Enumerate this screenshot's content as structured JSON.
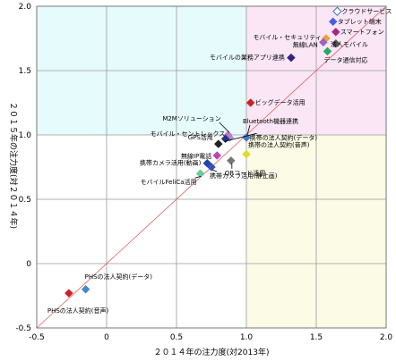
{
  "chart_data": {
    "type": "scatter",
    "title": "",
    "xlabel": "２０１４年の注力度(対2013年)",
    "ylabel": "２０１５年の注力度(対２０１４年)",
    "xlim": [
      -0.5,
      2.0
    ],
    "ylim": [
      -0.5,
      2.0
    ],
    "x_ticks": [
      "-0.5",
      "0",
      "0.5",
      "1.0",
      "1.5",
      "2.0"
    ],
    "y_ticks": [
      "-0.5",
      "0",
      "0.5",
      "1.0",
      "1.5",
      "2.0"
    ],
    "grid": true,
    "diagonal_line": true,
    "quadrants": [
      {
        "name": "upper-left",
        "color": "#e6fbfb"
      },
      {
        "name": "upper-right",
        "color": "#fbe6f6"
      },
      {
        "name": "lower-right",
        "color": "#fbfbe6"
      },
      {
        "name": "lower-left",
        "color": "#ffffff"
      }
    ],
    "points": [
      {
        "label": "クラウドサービス",
        "x": 1.65,
        "y": 1.96,
        "color": "#ffffff",
        "stroke": "#4472c4",
        "shape": "diamond"
      },
      {
        "label": "タブレット端末",
        "x": 1.62,
        "y": 1.88,
        "color": "#4466dd",
        "shape": "diamond"
      },
      {
        "label": "スマートフォン",
        "x": 1.64,
        "y": 1.8,
        "color": "#aa2288",
        "shape": "diamond"
      },
      {
        "label": "モバイル・セキュリティ",
        "x": 1.57,
        "y": 1.75,
        "color": "#e8a33a",
        "shape": "diamond"
      },
      {
        "label": "無線LAN",
        "x": 1.55,
        "y": 1.72,
        "color": "#9966bb",
        "shape": "diamond"
      },
      {
        "label": "法人モバイル",
        "x": 1.64,
        "y": 1.71,
        "color": "#555555",
        "shape": "diamond"
      },
      {
        "label": "データ通信対応",
        "x": 1.58,
        "y": 1.65,
        "color": "#22aa66",
        "shape": "diamond"
      },
      {
        "label": "モバイルの業務アプリ連携",
        "x": 1.32,
        "y": 1.6,
        "color": "#332288",
        "shape": "diamond"
      },
      {
        "label": "ビッグデータ活用",
        "x": 1.03,
        "y": 1.25,
        "color": "#cc2222",
        "shape": "diamond"
      },
      {
        "label": "M2Mソリューション",
        "x": 0.87,
        "y": 1.0,
        "color": "#cc66cc",
        "shape": "diamond"
      },
      {
        "label": "Bluetooth機器連携",
        "x": 1.0,
        "y": 0.98,
        "color": "#4477cc",
        "shape": "diamond"
      },
      {
        "label": "モバイル・セントレックス",
        "x": 0.88,
        "y": 0.98,
        "color": "#aa88cc",
        "shape": "diamond"
      },
      {
        "label": "携帯の法人契約(データ)",
        "x": 0.85,
        "y": 0.97,
        "color": "#223388",
        "shape": "diamond"
      },
      {
        "label": "GPS活用",
        "x": 0.8,
        "y": 0.93,
        "color": "#222222",
        "shape": "diamond"
      },
      {
        "label": "携帯の法人契約(音声)",
        "x": 1.0,
        "y": 0.85,
        "color": "#dddd22",
        "shape": "diamond"
      },
      {
        "label": "無線IP電話",
        "x": 0.79,
        "y": 0.84,
        "color": "#bb44bb",
        "shape": "diamond"
      },
      {
        "label": "携帯カメラ活用(動画)",
        "x": 0.72,
        "y": 0.78,
        "color": "#2244aa",
        "shape": "diamond"
      },
      {
        "label": "QRコード活用",
        "x": 0.89,
        "y": 0.8,
        "color": "#777777",
        "shape": "diamond"
      },
      {
        "label": "携帯カメラ活用(静止画)",
        "x": 0.75,
        "y": 0.75,
        "color": "#3355bb",
        "shape": "diamond"
      },
      {
        "label": "モバイルFeliCa活用",
        "x": 0.67,
        "y": 0.7,
        "color": "#66cc99",
        "shape": "diamond"
      },
      {
        "label": "PHSの法人契約(音声)",
        "x": -0.27,
        "y": -0.23,
        "color": "#cc2222",
        "shape": "diamond"
      },
      {
        "label": "PHSの法人契約(データ)",
        "x": -0.15,
        "y": -0.2,
        "color": "#4488cc",
        "shape": "diamond"
      }
    ]
  }
}
